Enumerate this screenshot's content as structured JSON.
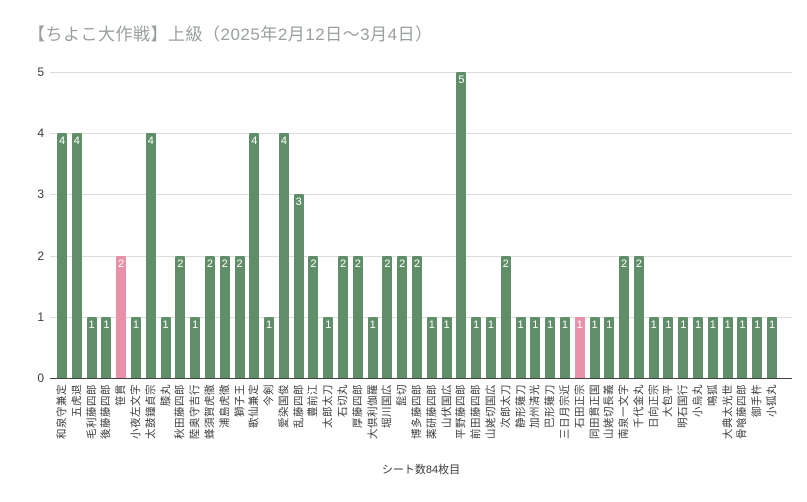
{
  "title": "【ちよこ大作戦】上級（2025年2月12日～3月4日）",
  "footer": "シート数84枚目",
  "chart_data": {
    "type": "bar",
    "title": "【ちよこ大作戦】上級（2025年2月12日～3月4日）",
    "categories": [
      "和泉守兼定",
      "五虎退",
      "毛利藤四郎",
      "後藤藤四郎",
      "笹貫",
      "小夜左文字",
      "太鼓鐘貞宗",
      "膝丸",
      "秋田藤四郎",
      "陸奥守吉行",
      "蜂須賀虎徹",
      "浦島虎徹",
      "獅子王",
      "歌仙兼定",
      "今剣",
      "愛染国俊",
      "乱藤四郎",
      "豊前江",
      "太郎太刀",
      "石切丸",
      "厚藤四郎",
      "大倶利伽羅",
      "堀川国広",
      "髭切",
      "博多藤四郎",
      "薬研藤四郎",
      "山伏国広",
      "平野藤四郎",
      "前田藤四郎",
      "山姥切国広",
      "次郎太刀",
      "静形薙刀",
      "加州清光",
      "巴形薙刀",
      "三日月宗近",
      "石田正宗",
      "同田貫正国",
      "山姥切長義",
      "南泉一文字",
      "千代金丸",
      "日向正宗",
      "大包平",
      "明石国行",
      "小烏丸",
      "鳴狐",
      "大典太光世",
      "骨喰藤四郎",
      "御手杵",
      "小狐丸"
    ],
    "values": [
      4,
      4,
      1,
      1,
      2,
      1,
      4,
      1,
      2,
      1,
      2,
      2,
      2,
      4,
      1,
      4,
      3,
      2,
      1,
      2,
      2,
      1,
      2,
      2,
      2,
      1,
      1,
      5,
      1,
      1,
      2,
      1,
      1,
      1,
      1,
      1,
      1,
      1,
      2,
      2,
      1,
      1,
      1,
      1,
      1,
      1,
      1,
      1,
      1
    ],
    "highlight_indices": [
      4,
      35
    ],
    "xlabel": "",
    "ylabel": "",
    "ylim": [
      0,
      5
    ],
    "yticks": [
      0,
      1,
      2,
      3,
      4,
      5
    ],
    "grid": true,
    "legend": "none",
    "value_labels_shown": true,
    "colors": {
      "bar": "#5f8e68",
      "highlight": "#e991a9",
      "value_label": "#ffffff",
      "title_text": "#9aa19c",
      "axis_text": "#3c3c3c",
      "gridline": "#dcdcdc",
      "baseline": "#424242",
      "background": "#ffffff"
    }
  }
}
